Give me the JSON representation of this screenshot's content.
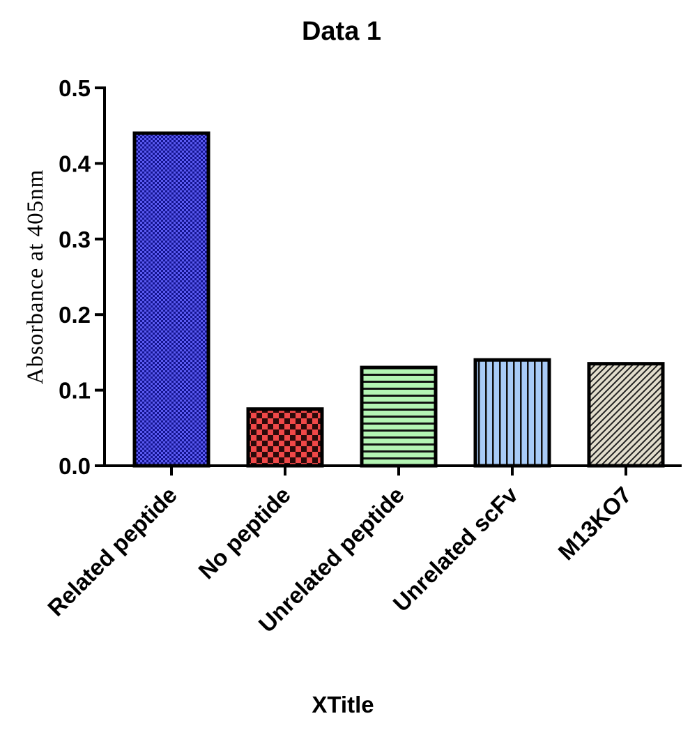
{
  "chart_data": {
    "type": "bar",
    "title": "Data 1",
    "xlabel": "XTitle",
    "ylabel": "Absorbance at 405nm",
    "categories": [
      "Related peptide",
      "No peptide",
      "Unrelated peptide",
      "Unrelated scFv",
      "M13KO7"
    ],
    "values": [
      0.44,
      0.075,
      0.13,
      0.14,
      0.135
    ],
    "ylim": [
      0,
      0.5
    ],
    "yticks": [
      "0.0",
      "0.1",
      "0.2",
      "0.3",
      "0.4",
      "0.5"
    ],
    "grid": false,
    "legend": "none",
    "bar_colors": [
      "#3a3ad6",
      "#e83a3a",
      "#a8f0a8",
      "#9ec4f5",
      "#d8d4c4"
    ],
    "bar_patterns": [
      "dots",
      "checker",
      "horizontal-lines",
      "vertical-lines",
      "diagonal-lines"
    ]
  }
}
